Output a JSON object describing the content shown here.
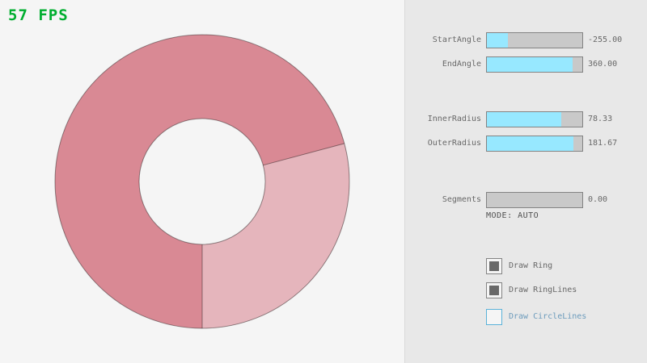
{
  "fps_label": "57 FPS",
  "panel": {
    "sliders": [
      {
        "label": "StartAngle",
        "value": "-255.00",
        "fill_pct": 21.7
      },
      {
        "label": "EndAngle",
        "value": "360.00",
        "fill_pct": 90.0
      },
      {
        "label": "InnerRadius",
        "value": "78.33",
        "fill_pct": 78.3
      },
      {
        "label": "OuterRadius",
        "value": "181.67",
        "fill_pct": 90.8
      },
      {
        "label": "Segments",
        "value": "0.00",
        "fill_pct": 0
      }
    ],
    "mode_text": "MODE: AUTO",
    "checkboxes": [
      {
        "label": "Draw Ring",
        "checked": true
      },
      {
        "label": "Draw RingLines",
        "checked": true
      },
      {
        "label": "Draw CircleLines",
        "checked": false
      }
    ]
  },
  "ring": {
    "start_angle": -255,
    "end_angle": 360,
    "inner_radius": 78.33,
    "outer_radius": 181.67,
    "segments": 0,
    "color_single_pass": "#e5b5bc",
    "color_double_pass": "#d98994",
    "outline_color": "rgba(0,0,0,0.4)"
  },
  "colors": {
    "background": "#f5f5f5",
    "panel": "#e8e8e8",
    "fps_green": "#00ae2f",
    "slider_track": "#c9c9c9",
    "slider_fill": "#97e8ff",
    "control_border": "#838383",
    "text": "#686868",
    "mode_text": "#505050",
    "focused_border": "#5bb2d9",
    "focused_text": "#6c9bbc",
    "check_fill": "#696969"
  }
}
